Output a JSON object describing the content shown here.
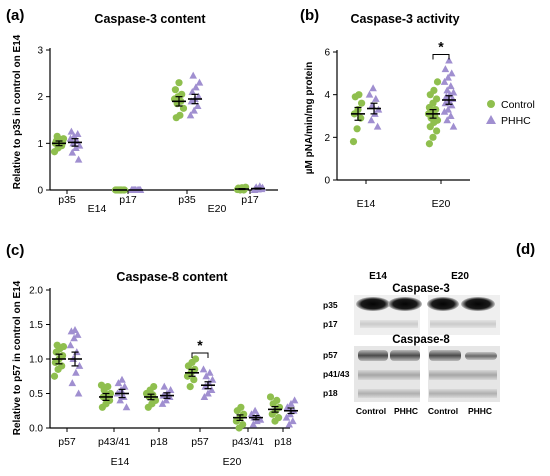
{
  "colors": {
    "control": "#8fbf4e",
    "phhc": "#a08fd0",
    "axis": "#000000"
  },
  "legend": {
    "control": "Control",
    "phhc": "PHHC"
  },
  "panels": {
    "a": {
      "letter": "(a)",
      "title": "Caspase-3 content",
      "ylabel": "Relative to p35 in control on E14",
      "yticks": [
        "0",
        "1",
        "2",
        "3"
      ],
      "xcats": [
        "p35",
        "p17",
        "p35",
        "p17"
      ],
      "groups": [
        "E14",
        "E20"
      ]
    },
    "b": {
      "letter": "(b)",
      "title": "Caspase-3 activity",
      "ylabel": "µM pNA/min/mg protein",
      "yticks": [
        "0",
        "2",
        "4",
        "6"
      ],
      "xcats": [
        "E14",
        "E20"
      ],
      "sig": "*"
    },
    "c": {
      "letter": "(c)",
      "title": "Caspase-8 content",
      "ylabel": "Relative to p57 in control on E14",
      "yticks": [
        "0.0",
        "0.5",
        "1.0",
        "1.5",
        "2.0"
      ],
      "xcats": [
        "p57",
        "p43/41",
        "p18",
        "p57",
        "p43/41",
        "p18"
      ],
      "groups": [
        "E14",
        "E20"
      ],
      "sig": "*"
    },
    "d": {
      "letter": "(d)",
      "groups": [
        "E14",
        "E20"
      ],
      "caspase3": "Caspase-3",
      "caspase8": "Caspase-8",
      "bands3": [
        "p35",
        "p17"
      ],
      "bands8": [
        "p57",
        "p41/43",
        "p18"
      ],
      "lanes": [
        "Control",
        "PHHC",
        "Control",
        "PHHC"
      ]
    }
  },
  "chart_data": [
    {
      "panel": "a",
      "type": "scatter",
      "title": "Caspase-3 content",
      "ylabel": "Relative to p35 in control on E14",
      "ylim": [
        0,
        3
      ],
      "categories": [
        "p35",
        "p17",
        "p35",
        "p17"
      ],
      "groups": [
        "E14",
        "E14",
        "E20",
        "E20"
      ],
      "series": [
        {
          "name": "Control",
          "mean": [
            1.0,
            0.0,
            1.9,
            0.02
          ],
          "sem": [
            0.05,
            0.0,
            0.1,
            0.01
          ],
          "points": [
            [
              0.82,
              0.9,
              0.95,
              1.0,
              1.0,
              1.02,
              1.05,
              1.08,
              1.1,
              1.15
            ],
            [
              0,
              0,
              0,
              0,
              0,
              0,
              0,
              0,
              0,
              0
            ],
            [
              1.55,
              1.6,
              1.75,
              1.85,
              1.9,
              1.95,
              2.0,
              2.05,
              2.15,
              2.3
            ],
            [
              0,
              0,
              0.01,
              0.02,
              0.03,
              0.04,
              0.05,
              0.06
            ]
          ]
        },
        {
          "name": "PHHC",
          "mean": [
            1.02,
            0.0,
            1.95,
            0.03
          ],
          "sem": [
            0.08,
            0.0,
            0.1,
            0.01
          ],
          "points": [
            [
              0.65,
              0.8,
              0.9,
              0.95,
              1.0,
              1.05,
              1.1,
              1.15,
              1.2,
              1.25
            ],
            [
              0,
              0,
              0,
              0,
              0,
              0,
              0,
              0,
              0,
              0
            ],
            [
              1.6,
              1.7,
              1.8,
              1.9,
              1.95,
              2.0,
              2.1,
              2.2,
              2.3,
              2.45
            ],
            [
              0,
              0.01,
              0.02,
              0.03,
              0.04,
              0.05,
              0.06,
              0.08
            ]
          ]
        }
      ]
    },
    {
      "panel": "b",
      "type": "scatter",
      "title": "Caspase-3 activity",
      "ylabel": "µM pNA/min/mg protein",
      "ylim": [
        0,
        6
      ],
      "categories": [
        "E14",
        "E20"
      ],
      "legend_placement": "right",
      "series": [
        {
          "name": "Control",
          "mean": [
            3.1,
            3.1
          ],
          "sem": [
            0.3,
            0.2
          ],
          "points": [
            [
              1.8,
              2.4,
              2.9,
              3.1,
              3.3,
              3.6,
              3.9,
              4.0
            ],
            [
              1.7,
              2.0,
              2.3,
              2.5,
              2.7,
              2.8,
              2.9,
              3.0,
              3.1,
              3.2,
              3.3,
              3.4,
              3.6,
              3.8,
              4.0,
              4.2,
              4.6
            ]
          ]
        },
        {
          "name": "PHHC",
          "mean": [
            3.35,
            3.75
          ],
          "sem": [
            0.25,
            0.2
          ],
          "points": [
            [
              2.5,
              2.8,
              3.1,
              3.3,
              3.5,
              3.8,
              4.0,
              4.3
            ],
            [
              2.5,
              2.8,
              3.0,
              3.2,
              3.3,
              3.5,
              3.6,
              3.7,
              3.8,
              3.9,
              4.0,
              4.1,
              4.2,
              4.4,
              4.6,
              4.8,
              5.0,
              5.2,
              5.6
            ]
          ]
        }
      ],
      "significance": [
        {
          "category": "E20",
          "label": "*"
        }
      ]
    },
    {
      "panel": "c",
      "type": "scatter",
      "title": "Caspase-8 content",
      "ylabel": "Relative to p57 in control on E14",
      "ylim": [
        0,
        2.0
      ],
      "categories": [
        "p57",
        "p43/41",
        "p18",
        "p57",
        "p43/41",
        "p18"
      ],
      "groups": [
        "E14",
        "E14",
        "E14",
        "E20",
        "E20",
        "E20"
      ],
      "series": [
        {
          "name": "Control",
          "mean": [
            1.0,
            0.45,
            0.45,
            0.8,
            0.15,
            0.27
          ],
          "sem": [
            0.07,
            0.05,
            0.04,
            0.05,
            0.04,
            0.04
          ],
          "points": [
            [
              0.75,
              0.85,
              0.9,
              0.95,
              1.0,
              1.05,
              1.1,
              1.15,
              1.18,
              1.2
            ],
            [
              0.3,
              0.35,
              0.4,
              0.45,
              0.48,
              0.5,
              0.55,
              0.6,
              0.62
            ],
            [
              0.3,
              0.35,
              0.4,
              0.45,
              0.48,
              0.5,
              0.55,
              0.6
            ],
            [
              0.6,
              0.7,
              0.75,
              0.8,
              0.85,
              0.9,
              0.95,
              1.0
            ],
            [
              0.0,
              0.05,
              0.1,
              0.15,
              0.2,
              0.25,
              0.3
            ],
            [
              0.1,
              0.15,
              0.2,
              0.25,
              0.3,
              0.35,
              0.4,
              0.45
            ]
          ]
        },
        {
          "name": "PHHC",
          "mean": [
            1.0,
            0.5,
            0.47,
            0.62,
            0.15,
            0.25
          ],
          "sem": [
            0.1,
            0.06,
            0.04,
            0.05,
            0.03,
            0.04
          ],
          "points": [
            [
              0.5,
              0.65,
              0.8,
              0.9,
              1.0,
              1.1,
              1.2,
              1.3,
              1.35,
              1.4,
              1.42
            ],
            [
              0.3,
              0.4,
              0.45,
              0.5,
              0.55,
              0.6,
              0.65,
              0.7
            ],
            [
              0.35,
              0.4,
              0.45,
              0.47,
              0.5,
              0.55,
              0.6
            ],
            [
              0.45,
              0.5,
              0.55,
              0.6,
              0.65,
              0.7,
              0.75,
              0.8,
              0.85
            ],
            [
              0.05,
              0.1,
              0.12,
              0.15,
              0.18,
              0.2,
              0.25
            ],
            [
              0.05,
              0.1,
              0.15,
              0.2,
              0.25,
              0.3,
              0.35,
              0.4
            ]
          ]
        }
      ],
      "significance": [
        {
          "category_index": 3,
          "label": "*"
        }
      ]
    }
  ]
}
